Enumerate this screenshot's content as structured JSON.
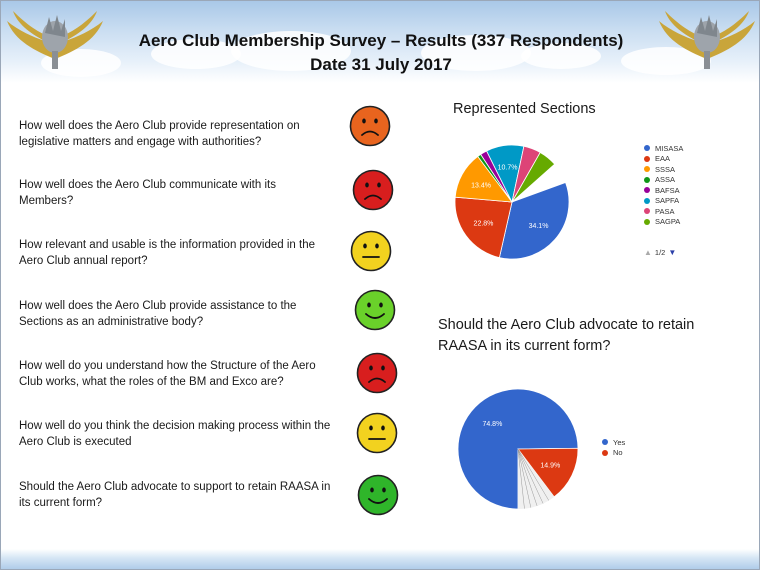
{
  "header": {
    "title_line1": "Aero Club Membership Survey – Results (337 Respondents)",
    "title_line2": "Date 31 July 2017"
  },
  "emblem_icon": "winged-protea-emblem",
  "questions": [
    {
      "text": "How well does the Aero Club provide representation on legislative matters and engage with authorities?",
      "rating": "frown",
      "color": "#e8641e"
    },
    {
      "text": "How well does the Aero Club communicate with its Members?",
      "rating": "frown",
      "color": "#d81e1e"
    },
    {
      "text": "How relevant and usable is the information provided in the Aero Club annual report?",
      "rating": "neutral",
      "color": "#f2d21f"
    },
    {
      "text": "How well does the Aero Club provide assistance to the Sections as an administrative body?",
      "rating": "smile",
      "color": "#6ad12a"
    },
    {
      "text": "How well do you understand how the Structure of the Aero Club works, what the roles of the BM and Exco are?",
      "rating": "frown",
      "color": "#d81e1e"
    },
    {
      "text": "How well do you think the decision making process within the Aero Club is executed",
      "rating": "neutral",
      "color": "#f2d21f"
    },
    {
      "text": "Should the Aero Club advocate to support to retain RAASA in its current form?",
      "rating": "smile",
      "color": "#2fb52a"
    }
  ],
  "chart_data": [
    {
      "type": "pie",
      "title": "Represented Sections",
      "categories": [
        "MISASA",
        "EAA",
        "SSSA",
        "ASSA",
        "BAFSA",
        "SAPFA",
        "PASA",
        "SAGPA"
      ],
      "values": [
        34.1,
        22.8,
        13.4,
        1.0,
        1.9,
        10.7,
        4.9,
        5.2
      ],
      "data_labels": [
        "34.1%",
        "22.8%",
        "13.4%",
        "",
        "",
        "10.7%",
        "",
        ""
      ],
      "colors": [
        "#3366cc",
        "#dc3912",
        "#ff9900",
        "#109618",
        "#990099",
        "#0099c6",
        "#dd4477",
        "#66aa00"
      ],
      "legend_position": "right",
      "legend_pager": "1/2"
    },
    {
      "type": "pie",
      "title": "Should the Aero Club advocate to retain RAASA in its current form?",
      "categories": [
        "Yes",
        "No"
      ],
      "values": [
        74.8,
        14.9
      ],
      "data_labels": [
        "74.8%",
        "14.9%"
      ],
      "colors": [
        "#3366cc",
        "#dc3912"
      ],
      "legend_position": "right"
    }
  ]
}
